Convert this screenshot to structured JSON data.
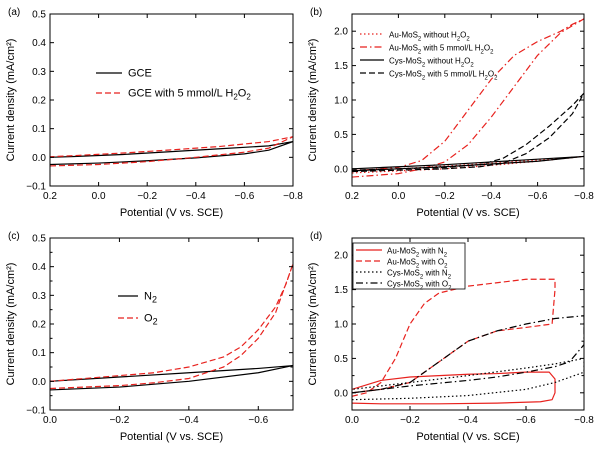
{
  "colors": {
    "black": "#000000",
    "red": "#e8221e"
  },
  "chart_data": [
    {
      "type": "line",
      "panel": "(a)",
      "xlabel": "Potential (V vs. SCE)",
      "ylabel": "Current density (mA/cm²)",
      "xlim": [
        0.2,
        -0.8
      ],
      "ylim": [
        -0.1,
        0.5
      ],
      "xticks": [
        0.2,
        0.0,
        -0.2,
        -0.4,
        -0.6,
        -0.8
      ],
      "xticklabels": [
        "0.2",
        "0.0",
        "−0.2",
        "−0.4",
        "−0.6",
        "−0.8"
      ],
      "yticks": [
        -0.1,
        0.0,
        0.1,
        0.2,
        0.3,
        0.4,
        0.5
      ],
      "yticklabels": [
        "−0.1",
        "0.0",
        "0.1",
        "0.2",
        "0.3",
        "0.4",
        "0.5"
      ],
      "legend": {
        "position": "middle-right",
        "entries": [
          [
            "GCE",
            ""
          ],
          [
            "GCE with 5 mmol/L H",
            "2",
            "O",
            "2",
            ""
          ]
        ]
      },
      "series": [
        {
          "name": "GCE",
          "color": "#000000",
          "dash": "solid",
          "points": [
            [
              0.2,
              -0.025
            ],
            [
              0.0,
              -0.02
            ],
            [
              -0.2,
              -0.012
            ],
            [
              -0.4,
              -0.002
            ],
            [
              -0.6,
              0.012
            ],
            [
              -0.7,
              0.025
            ],
            [
              -0.8,
              0.055
            ],
            [
              -0.7,
              0.04
            ],
            [
              -0.5,
              0.03
            ],
            [
              -0.3,
              0.02
            ],
            [
              -0.1,
              0.01
            ],
            [
              0.1,
              0.003
            ],
            [
              0.2,
              0.0
            ]
          ]
        },
        {
          "name": "GCE with 5 mmol/L H2O2",
          "color": "#e8221e",
          "dash": "dashed",
          "points": [
            [
              0.2,
              -0.03
            ],
            [
              0.0,
              -0.025
            ],
            [
              -0.2,
              -0.015
            ],
            [
              -0.4,
              0.0
            ],
            [
              -0.6,
              0.018
            ],
            [
              -0.7,
              0.032
            ],
            [
              -0.8,
              0.072
            ],
            [
              -0.7,
              0.055
            ],
            [
              -0.5,
              0.038
            ],
            [
              -0.3,
              0.026
            ],
            [
              -0.1,
              0.015
            ],
            [
              0.1,
              0.006
            ],
            [
              0.2,
              0.002
            ]
          ]
        }
      ]
    },
    {
      "type": "line",
      "panel": "(b)",
      "xlabel": "Potential (V vs. SCE)",
      "ylabel": "Current density (mA/cm²)",
      "xlim": [
        0.2,
        -0.8
      ],
      "ylim": [
        -0.25,
        2.25
      ],
      "xticks": [
        0.2,
        0.0,
        -0.2,
        -0.4,
        -0.6,
        -0.8
      ],
      "xticklabels": [
        "0.2",
        "0.0",
        "−0.2",
        "−0.4",
        "−0.6",
        "−0.8"
      ],
      "yticks": [
        -0.25,
        0.0,
        0.25,
        0.5,
        0.75,
        1.0,
        1.25,
        1.5,
        1.75,
        2.0,
        2.25
      ],
      "yticklabels": [
        "",
        "0.0",
        "",
        "0.5",
        "",
        "1.0",
        "",
        "1.5",
        "",
        "2.0",
        ""
      ],
      "legend": {
        "position": "top-left",
        "entries": [
          [
            "Au-MoS",
            "2",
            " without H",
            "2",
            "O",
            "2",
            ""
          ],
          [
            "Au-MoS",
            "2",
            " with 5 mmol/L H",
            "2",
            "O",
            "2",
            ""
          ],
          [
            "Cys-MoS",
            "2",
            " without H",
            "2",
            "O",
            "2",
            ""
          ],
          [
            "Cys-MoS",
            "2",
            " with 5 mmol/L H",
            "2",
            "O",
            "2",
            ""
          ]
        ]
      },
      "series": [
        {
          "name": "Au-MoS2 without H2O2",
          "color": "#e8221e",
          "dash": "dotted",
          "points": [
            [
              0.2,
              -0.06
            ],
            [
              0.0,
              -0.03
            ],
            [
              -0.2,
              0.0
            ],
            [
              -0.4,
              0.05
            ],
            [
              -0.6,
              0.11
            ],
            [
              -0.8,
              0.18
            ],
            [
              -0.6,
              0.13
            ],
            [
              -0.4,
              0.08
            ],
            [
              -0.2,
              0.04
            ],
            [
              0.0,
              0.0
            ],
            [
              0.2,
              -0.02
            ]
          ]
        },
        {
          "name": "Au-MoS2 with 5 mmol/L H2O2",
          "color": "#e8221e",
          "dash": "dashdot",
          "points": [
            [
              0.2,
              -0.12
            ],
            [
              0.0,
              -0.07
            ],
            [
              -0.1,
              0.0
            ],
            [
              -0.2,
              0.1
            ],
            [
              -0.3,
              0.35
            ],
            [
              -0.4,
              0.75
            ],
            [
              -0.5,
              1.2
            ],
            [
              -0.6,
              1.65
            ],
            [
              -0.7,
              1.98
            ],
            [
              -0.8,
              2.18
            ],
            [
              -0.75,
              2.1
            ],
            [
              -0.7,
              2.0
            ],
            [
              -0.6,
              1.85
            ],
            [
              -0.5,
              1.65
            ],
            [
              -0.4,
              1.3
            ],
            [
              -0.3,
              0.85
            ],
            [
              -0.2,
              0.4
            ],
            [
              -0.1,
              0.12
            ],
            [
              0.0,
              0.02
            ],
            [
              0.2,
              -0.03
            ]
          ]
        },
        {
          "name": "Cys-MoS2 without H2O2",
          "color": "#000000",
          "dash": "solid",
          "points": [
            [
              0.2,
              -0.03
            ],
            [
              0.0,
              0.0
            ],
            [
              -0.2,
              0.03
            ],
            [
              -0.4,
              0.07
            ],
            [
              -0.6,
              0.11
            ],
            [
              -0.8,
              0.18
            ],
            [
              -0.6,
              0.14
            ],
            [
              -0.4,
              0.1
            ],
            [
              -0.2,
              0.06
            ],
            [
              0.0,
              0.03
            ],
            [
              0.2,
              0.0
            ]
          ]
        },
        {
          "name": "Cys-MoS2 with 5 mmol/L H2O2",
          "color": "#000000",
          "dash": "dashed",
          "points": [
            [
              0.2,
              -0.04
            ],
            [
              0.0,
              -0.02
            ],
            [
              -0.2,
              0.0
            ],
            [
              -0.35,
              0.03
            ],
            [
              -0.45,
              0.08
            ],
            [
              -0.55,
              0.22
            ],
            [
              -0.65,
              0.45
            ],
            [
              -0.75,
              0.8
            ],
            [
              -0.8,
              1.1
            ],
            [
              -0.75,
              0.92
            ],
            [
              -0.65,
              0.62
            ],
            [
              -0.55,
              0.35
            ],
            [
              -0.45,
              0.15
            ],
            [
              -0.35,
              0.06
            ],
            [
              -0.2,
              0.02
            ],
            [
              0.0,
              0.0
            ],
            [
              0.2,
              -0.02
            ]
          ]
        }
      ]
    },
    {
      "type": "line",
      "panel": "(c)",
      "xlabel": "Potential (V vs. SCE)",
      "ylabel": "Current density (mA/cm²)",
      "xlim": [
        0.0,
        -0.7
      ],
      "ylim": [
        -0.1,
        0.5
      ],
      "xticks": [
        0.0,
        -0.2,
        -0.4,
        -0.6
      ],
      "xticklabels": [
        "0.0",
        "−0.2",
        "−0.4",
        "−0.6"
      ],
      "yticks": [
        -0.1,
        -0.05,
        0.0,
        0.05,
        0.1,
        0.15,
        0.2,
        0.25,
        0.3,
        0.35,
        0.4,
        0.45,
        0.5
      ],
      "yticklabels": [
        "−0.1",
        "",
        "0.0",
        "",
        "0.1",
        "",
        "0.2",
        "",
        "0.3",
        "",
        "0.4",
        "",
        "0.5"
      ],
      "legend": {
        "position": "middle-left",
        "entries": [
          [
            "N",
            "2",
            ""
          ],
          [
            "O",
            "2",
            ""
          ]
        ]
      },
      "series": [
        {
          "name": "N2",
          "color": "#000000",
          "dash": "solid",
          "points": [
            [
              0.0,
              -0.03
            ],
            [
              -0.2,
              -0.02
            ],
            [
              -0.4,
              0.0
            ],
            [
              -0.6,
              0.03
            ],
            [
              -0.7,
              0.055
            ],
            [
              -0.6,
              0.045
            ],
            [
              -0.4,
              0.03
            ],
            [
              -0.2,
              0.015
            ],
            [
              0.0,
              0.0
            ]
          ]
        },
        {
          "name": "O2",
          "color": "#e8221e",
          "dash": "dashed",
          "points": [
            [
              0.0,
              -0.025
            ],
            [
              -0.2,
              -0.015
            ],
            [
              -0.3,
              -0.005
            ],
            [
              -0.4,
              0.01
            ],
            [
              -0.5,
              0.05
            ],
            [
              -0.55,
              0.09
            ],
            [
              -0.6,
              0.15
            ],
            [
              -0.65,
              0.24
            ],
            [
              -0.7,
              0.41
            ],
            [
              -0.68,
              0.34
            ],
            [
              -0.65,
              0.26
            ],
            [
              -0.6,
              0.18
            ],
            [
              -0.55,
              0.12
            ],
            [
              -0.5,
              0.085
            ],
            [
              -0.4,
              0.05
            ],
            [
              -0.3,
              0.03
            ],
            [
              -0.2,
              0.02
            ],
            [
              0.0,
              0.0
            ]
          ]
        }
      ]
    },
    {
      "type": "line",
      "panel": "(d)",
      "xlabel": "Potential (V vs. SCE)",
      "ylabel": "Current density (mA/cm²)",
      "xlim": [
        0.0,
        -0.8
      ],
      "ylim": [
        -0.25,
        2.25
      ],
      "xticks": [
        0.0,
        -0.2,
        -0.4,
        -0.6,
        -0.8
      ],
      "xticklabels": [
        "0.0",
        "−0.2",
        "−0.4",
        "−0.6",
        "−0.8"
      ],
      "yticks": [
        -0.25,
        0.0,
        0.25,
        0.5,
        0.75,
        1.0,
        1.25,
        1.5,
        1.75,
        2.0,
        2.25
      ],
      "yticklabels": [
        "",
        "0.0",
        "",
        "0.5",
        "",
        "1.0",
        "",
        "1.5",
        "",
        "2.0",
        ""
      ],
      "legend": {
        "position": "top-left",
        "entries": [
          [
            "Au-MoS",
            "2",
            " with N",
            "2",
            ""
          ],
          [
            "Au-MoS",
            "2",
            " with O",
            "2",
            ""
          ],
          [
            "Cys-MoS",
            "2",
            " with N",
            "2",
            ""
          ],
          [
            "Cys-MoS",
            "2",
            " with O",
            "2",
            ""
          ]
        ]
      },
      "series": [
        {
          "name": "Au-MoS2 with N2",
          "color": "#e8221e",
          "dash": "solid",
          "points": [
            [
              0.0,
              -0.15
            ],
            [
              -0.1,
              -0.16
            ],
            [
              -0.3,
              -0.16
            ],
            [
              -0.5,
              -0.15
            ],
            [
              -0.65,
              -0.13
            ],
            [
              -0.69,
              -0.1
            ],
            [
              -0.7,
              0.0
            ],
            [
              -0.7,
              0.2
            ],
            [
              -0.68,
              0.3
            ],
            [
              -0.6,
              0.3
            ],
            [
              -0.5,
              0.28
            ],
            [
              -0.4,
              0.27
            ],
            [
              -0.3,
              0.25
            ],
            [
              -0.2,
              0.23
            ],
            [
              -0.1,
              0.18
            ],
            [
              0.0,
              0.05
            ]
          ]
        },
        {
          "name": "Au-MoS2 with O2",
          "color": "#e8221e",
          "dash": "dashed",
          "points": [
            [
              0.0,
              -0.05
            ],
            [
              -0.05,
              0.0
            ],
            [
              -0.1,
              0.15
            ],
            [
              -0.15,
              0.5
            ],
            [
              -0.2,
              1.0
            ],
            [
              -0.25,
              1.3
            ],
            [
              -0.3,
              1.45
            ],
            [
              -0.4,
              1.55
            ],
            [
              -0.5,
              1.6
            ],
            [
              -0.6,
              1.65
            ],
            [
              -0.68,
              1.65
            ],
            [
              -0.7,
              1.65
            ],
            [
              -0.7,
              1.5
            ],
            [
              -0.69,
              1.0
            ],
            [
              -0.6,
              0.95
            ],
            [
              -0.5,
              0.9
            ],
            [
              -0.4,
              0.75
            ],
            [
              -0.3,
              0.45
            ],
            [
              -0.2,
              0.15
            ],
            [
              -0.1,
              0.05
            ],
            [
              0.0,
              0.0
            ]
          ]
        },
        {
          "name": "Cys-MoS2 with N2",
          "color": "#000000",
          "dash": "dotted",
          "points": [
            [
              0.0,
              -0.1
            ],
            [
              -0.2,
              -0.08
            ],
            [
              -0.4,
              -0.04
            ],
            [
              -0.6,
              0.05
            ],
            [
              -0.7,
              0.15
            ],
            [
              -0.8,
              0.3
            ],
            [
              -0.8,
              0.5
            ],
            [
              -0.7,
              0.42
            ],
            [
              -0.6,
              0.36
            ],
            [
              -0.4,
              0.25
            ],
            [
              -0.2,
              0.15
            ],
            [
              0.0,
              0.05
            ]
          ]
        },
        {
          "name": "Cys-MoS2 with O2",
          "color": "#000000",
          "dash": "dashdot",
          "points": [
            [
              0.0,
              0.0
            ],
            [
              -0.1,
              0.05
            ],
            [
              -0.2,
              0.15
            ],
            [
              -0.3,
              0.45
            ],
            [
              -0.4,
              0.75
            ],
            [
              -0.5,
              0.9
            ],
            [
              -0.6,
              1.0
            ],
            [
              -0.7,
              1.08
            ],
            [
              -0.8,
              1.12
            ],
            [
              -0.8,
              0.7
            ],
            [
              -0.75,
              0.45
            ],
            [
              -0.7,
              0.38
            ],
            [
              -0.6,
              0.3
            ],
            [
              -0.5,
              0.23
            ],
            [
              -0.4,
              0.18
            ],
            [
              -0.2,
              0.1
            ],
            [
              0.0,
              0.0
            ]
          ]
        }
      ]
    }
  ]
}
